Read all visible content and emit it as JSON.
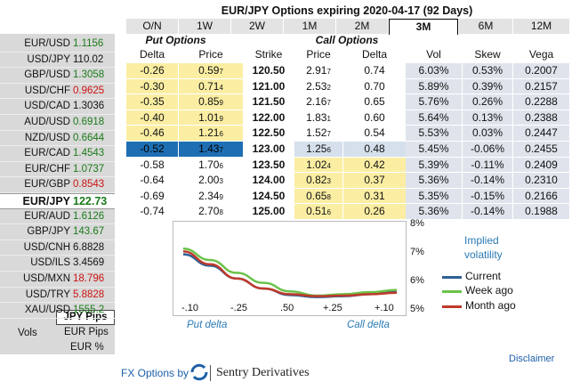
{
  "title": "EUR/JPY Options expiring 2020-04-17 (92 Days)",
  "tabs": [
    "O/N",
    "1W",
    "2W",
    "1M",
    "2M",
    "3M",
    "6M",
    "12M"
  ],
  "active_tab": "3M",
  "sections": {
    "put": "Put Options",
    "call": "Call Options"
  },
  "headers": {
    "put_delta": "Delta",
    "put_price": "Price",
    "strike": "Strike",
    "call_price": "Price",
    "call_delta": "Delta",
    "vol": "Vol",
    "skew": "Skew",
    "vega": "Vega"
  },
  "pairs": [
    {
      "name": "EUR/USD",
      "rate": "1.1156",
      "color": "#1a7a1a"
    },
    {
      "name": "USD/JPY",
      "rate": "110.02",
      "color": "#111111"
    },
    {
      "name": "GBP/USD",
      "rate": "1.3058",
      "color": "#1a7a1a"
    },
    {
      "name": "USD/CHF",
      "rate": "0.9625",
      "color": "#cc1111"
    },
    {
      "name": "USD/CAD",
      "rate": "1.3036",
      "color": "#111111"
    },
    {
      "name": "AUD/USD",
      "rate": "0.6918",
      "color": "#1a7a1a"
    },
    {
      "name": "NZD/USD",
      "rate": "0.6644",
      "color": "#1a7a1a"
    },
    {
      "name": "EUR/CAD",
      "rate": "1.4543",
      "color": "#1a7a1a"
    },
    {
      "name": "EUR/CHF",
      "rate": "1.0737",
      "color": "#1a7a1a"
    },
    {
      "name": "EUR/GBP",
      "rate": "0.8543",
      "color": "#cc1111"
    },
    {
      "name": "EUR/JPY",
      "rate": "122.73",
      "color": "#1a7a1a"
    },
    {
      "name": "EUR/AUD",
      "rate": "1.6126",
      "color": "#1a7a1a"
    },
    {
      "name": "GBP/JPY",
      "rate": "143.67",
      "color": "#1a7a1a"
    },
    {
      "name": "USD/CNH",
      "rate": "6.8828",
      "color": "#111111"
    },
    {
      "name": "USD/ILS",
      "rate": "3.4569",
      "color": "#111111"
    },
    {
      "name": "USD/MXN",
      "rate": "18.796",
      "color": "#cc1111"
    },
    {
      "name": "USD/TRY",
      "rate": "5.8828",
      "color": "#cc1111"
    },
    {
      "name": "XAU/USD",
      "rate": "1555.2",
      "color": "#1a7a1a"
    }
  ],
  "selected_pair": "EUR/JPY",
  "units": {
    "jpy_pips": "JPY Pips",
    "vols": "Vols",
    "eur_pips": "EUR Pips",
    "eur_pct": "EUR %"
  },
  "rows": [
    {
      "pd": "-0.26",
      "pp": "0.59",
      "pps": "7",
      "k": "120.50",
      "cp": "2.91",
      "cps": "7",
      "cd": "0.74",
      "vol": "6.03%",
      "skew": "0.53%",
      "vega": "0.2007"
    },
    {
      "pd": "-0.30",
      "pp": "0.71",
      "pps": "4",
      "k": "121.00",
      "cp": "2.53",
      "cps": "2",
      "cd": "0.70",
      "vol": "5.89%",
      "skew": "0.39%",
      "vega": "0.2157"
    },
    {
      "pd": "-0.35",
      "pp": "0.85",
      "pps": "9",
      "k": "121.50",
      "cp": "2.16",
      "cps": "7",
      "cd": "0.65",
      "vol": "5.76%",
      "skew": "0.26%",
      "vega": "0.2288"
    },
    {
      "pd": "-0.40",
      "pp": "1.01",
      "pps": "9",
      "k": "122.00",
      "cp": "1.83",
      "cps": "1",
      "cd": "0.60",
      "vol": "5.64%",
      "skew": "0.13%",
      "vega": "0.2388"
    },
    {
      "pd": "-0.46",
      "pp": "1.21",
      "pps": "6",
      "k": "122.50",
      "cp": "1.52",
      "cps": "7",
      "cd": "0.54",
      "vol": "5.53%",
      "skew": "0.03%",
      "vega": "0.2447"
    },
    {
      "pd": "-0.52",
      "pp": "1.43",
      "pps": "7",
      "k": "123.00",
      "cp": "1.25",
      "cps": "6",
      "cd": "0.48",
      "vol": "5.45%",
      "skew": "-0.06%",
      "vega": "0.2455"
    },
    {
      "pd": "-0.58",
      "pp": "1.70",
      "pps": "6",
      "k": "123.50",
      "cp": "1.02",
      "cps": "4",
      "cd": "0.42",
      "vol": "5.39%",
      "skew": "-0.11%",
      "vega": "0.2409"
    },
    {
      "pd": "-0.64",
      "pp": "2.00",
      "pps": "3",
      "k": "124.00",
      "cp": "0.82",
      "cps": "3",
      "cd": "0.37",
      "vol": "5.36%",
      "skew": "-0.14%",
      "vega": "0.2310"
    },
    {
      "pd": "-0.69",
      "pp": "2.34",
      "pps": "9",
      "k": "124.50",
      "cp": "0.65",
      "cps": "8",
      "cd": "0.31",
      "vol": "5.35%",
      "skew": "-0.15%",
      "vega": "0.2166"
    },
    {
      "pd": "-0.74",
      "pp": "2.70",
      "pps": "8",
      "k": "125.00",
      "cp": "0.51",
      "cps": "6",
      "cd": "0.26",
      "vol": "5.36%",
      "skew": "-0.14%",
      "vega": "0.1988"
    }
  ],
  "chart_data": {
    "type": "line",
    "title": "Implied volatility",
    "x": [
      -0.1,
      -0.175,
      -0.25,
      -0.375,
      -0.5,
      0.375,
      0.25,
      0.175,
      0.1
    ],
    "x_tick_labels": [
      "-.10",
      "-.25",
      ".50",
      "+.25",
      "+.10"
    ],
    "y_tick_labels": [
      "8%",
      "7%",
      "6%",
      "5%"
    ],
    "ylim": [
      5,
      8
    ],
    "x_axis_labels": {
      "left": "Put delta",
      "right": "Call delta"
    },
    "series": [
      {
        "name": "Current",
        "color": "#2e5f93",
        "values": [
          6.95,
          6.55,
          6.1,
          5.75,
          5.52,
          5.45,
          5.48,
          5.55,
          5.65
        ]
      },
      {
        "name": "Week ago",
        "color": "#6cc24a",
        "values": [
          7.15,
          6.75,
          6.3,
          5.95,
          5.65,
          5.5,
          5.55,
          5.62,
          5.7
        ]
      },
      {
        "name": "Month ago",
        "color": "#c0392b",
        "values": [
          7.05,
          6.6,
          6.1,
          5.75,
          5.55,
          5.48,
          5.5,
          5.55,
          5.6
        ]
      }
    ]
  },
  "footer": {
    "disclaimer": "Disclaimer",
    "fx_options_by": "FX Options by",
    "brand": "Sentry Derivatives"
  }
}
